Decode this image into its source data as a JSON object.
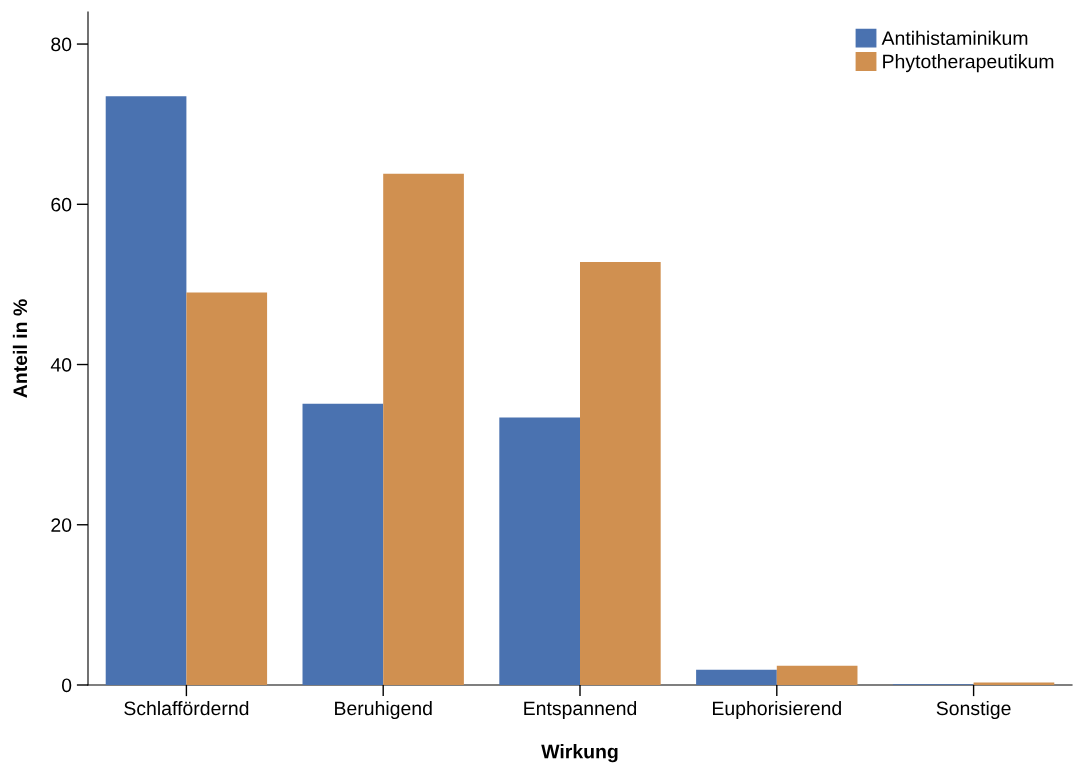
{
  "chart_data": {
    "type": "bar",
    "xlabel": "Wirkung",
    "ylabel": "Anteil in %",
    "categories": [
      "Schlaffördernd",
      "Beruhigend",
      "Entspannend",
      "Euphorisierend",
      "Sonstige"
    ],
    "series": [
      {
        "name": "Antihistaminikum",
        "color": "#4a72b0",
        "values": [
          73.5,
          35.1,
          33.4,
          1.9,
          0.1
        ]
      },
      {
        "name": "Phytotherapeutikum",
        "color": "#d09050",
        "values": [
          49.0,
          63.8,
          52.8,
          2.4,
          0.3
        ]
      }
    ],
    "ylim": [
      0,
      84
    ],
    "yticks": [
      0,
      20,
      40,
      60,
      80
    ],
    "grid": false,
    "legend": "top right"
  }
}
